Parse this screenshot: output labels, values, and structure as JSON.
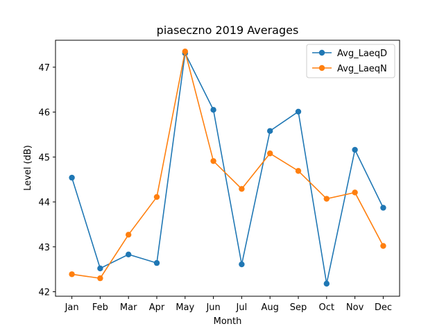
{
  "chart_data": {
    "type": "line",
    "title": "piaseczno 2019 Averages",
    "xlabel": "Month",
    "ylabel": "Level (dB)",
    "categories": [
      "Jan",
      "Feb",
      "Mar",
      "Apr",
      "May",
      "Jun",
      "Jul",
      "Aug",
      "Sep",
      "Oct",
      "Nov",
      "Dec"
    ],
    "ylim": [
      41.9,
      47.6
    ],
    "yticks": [
      42,
      43,
      44,
      45,
      46,
      47
    ],
    "grid": false,
    "legend_position": "top-right",
    "series": [
      {
        "name": "Avg_LaeqD",
        "color": "#1f77b4",
        "marker": "circle",
        "values": [
          44.54,
          42.52,
          42.83,
          42.64,
          47.31,
          46.05,
          42.61,
          45.58,
          46.01,
          42.18,
          45.16,
          43.87
        ]
      },
      {
        "name": "Avg_LaeqN",
        "color": "#ff7f0e",
        "marker": "circle",
        "values": [
          42.39,
          42.3,
          43.27,
          44.11,
          47.35,
          44.91,
          44.29,
          45.08,
          44.69,
          44.07,
          44.21,
          43.02
        ]
      }
    ]
  }
}
